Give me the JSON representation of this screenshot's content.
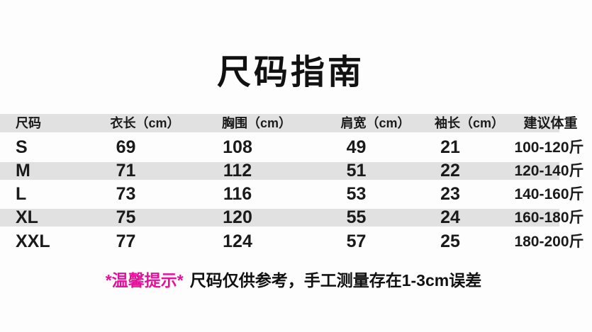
{
  "chart_data": {
    "type": "table",
    "title": "尺码指南",
    "columns": [
      "尺码",
      "衣长（cm）",
      "胸围（cm）",
      "肩宽（cm）",
      "袖长（cm）",
      "建议体重"
    ],
    "rows": [
      [
        "S",
        "69",
        "108",
        "49",
        "21",
        "100-120斤"
      ],
      [
        "M",
        "71",
        "112",
        "51",
        "22",
        "120-140斤"
      ],
      [
        "L",
        "73",
        "116",
        "53",
        "23",
        "140-160斤"
      ],
      [
        "XL",
        "75",
        "120",
        "55",
        "24",
        "160-180斤"
      ],
      [
        "XXL",
        "77",
        "124",
        "57",
        "25",
        "180-200斤"
      ]
    ],
    "striped_rows": [
      "header",
      "M",
      "XL"
    ],
    "legend_position": "none",
    "grid": false
  },
  "note": {
    "highlight": "*温馨提示*",
    "body": "尺码仅供参考，手工测量存在1-3cm误差"
  },
  "colors": {
    "background": "#fdfdfd",
    "stripe": "#e1e1e1",
    "text": "#1a1a1a",
    "note_highlight": "#e6119b"
  }
}
